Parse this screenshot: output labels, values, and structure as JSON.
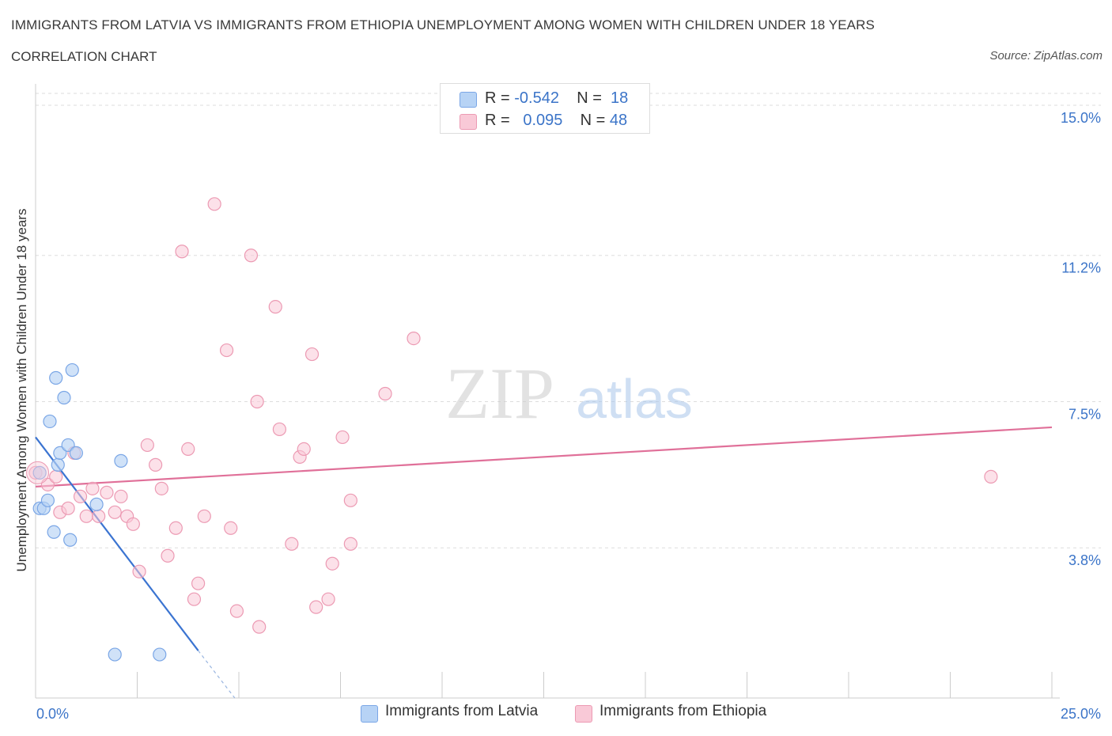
{
  "title": "IMMIGRANTS FROM LATVIA VS IMMIGRANTS FROM ETHIOPIA UNEMPLOYMENT AMONG WOMEN WITH CHILDREN UNDER 18 YEARS",
  "subtitle": "CORRELATION CHART",
  "source": "Source: ZipAtlas.com",
  "watermark": {
    "zip": "ZIP",
    "atlas": "atlas"
  },
  "legend_top": {
    "rows": [
      {
        "r_label": "R = ",
        "r_value": "-0.542",
        "n_label": "N = ",
        "n_value": "18"
      },
      {
        "r_label": "R = ",
        "r_value": "0.095",
        "n_label": "N = ",
        "n_value": "48"
      }
    ]
  },
  "legend_bottom": [
    "Immigrants from Latvia",
    "Immigrants from Ethiopia"
  ],
  "colors": {
    "latvia_fill": "#b7d3f5",
    "latvia_stroke": "#7aa6e6",
    "latvia_line": "#3b74d1",
    "ethiopia_fill": "#f9c9d7",
    "ethiopia_stroke": "#ec9ab3",
    "ethiopia_line": "#e07099",
    "tick_label": "#3b74c8",
    "grid": "#dddddd"
  },
  "chart_data": {
    "type": "scatter",
    "title": "IMMIGRANTS FROM LATVIA VS IMMIGRANTS FROM ETHIOPIA UNEMPLOYMENT AMONG WOMEN WITH CHILDREN UNDER 18 YEARS",
    "xlabel": "",
    "ylabel": "Unemployment Among Women with Children Under 18 years",
    "xlim": [
      0,
      25
    ],
    "ylim": [
      0,
      15.3
    ],
    "x_tick_labels": [
      "0.0%",
      "25.0%"
    ],
    "y_ticks": [
      3.8,
      7.5,
      11.2,
      15.0
    ],
    "y_tick_labels": [
      "3.8%",
      "7.5%",
      "11.2%",
      "15.0%"
    ],
    "grid": true,
    "legend_position": "top-center",
    "series": [
      {
        "name": "Immigrants from Latvia",
        "R": -0.542,
        "N": 18,
        "points": [
          [
            0.1,
            5.7
          ],
          [
            0.1,
            4.8
          ],
          [
            0.2,
            4.8
          ],
          [
            0.3,
            5.0
          ],
          [
            0.35,
            7.0
          ],
          [
            0.45,
            4.2
          ],
          [
            0.5,
            8.1
          ],
          [
            0.55,
            5.9
          ],
          [
            0.6,
            6.2
          ],
          [
            0.7,
            7.6
          ],
          [
            0.8,
            6.4
          ],
          [
            0.85,
            4.0
          ],
          [
            0.9,
            8.3
          ],
          [
            1.0,
            6.2
          ],
          [
            1.5,
            4.9
          ],
          [
            2.1,
            6.0
          ],
          [
            1.95,
            1.1
          ],
          [
            3.05,
            1.1
          ]
        ],
        "trend": {
          "x0": 0.0,
          "y0": 6.6,
          "x1": 4.0,
          "y1": 1.2,
          "dash_to_x": 4.9,
          "dash_to_y": 0.0
        }
      },
      {
        "name": "Immigrants from Ethiopia",
        "R": 0.095,
        "N": 48,
        "points": [
          [
            0.0,
            5.7
          ],
          [
            0.3,
            5.4
          ],
          [
            0.5,
            5.6
          ],
          [
            0.6,
            4.7
          ],
          [
            0.8,
            4.8
          ],
          [
            0.95,
            6.2
          ],
          [
            1.1,
            5.1
          ],
          [
            1.25,
            4.6
          ],
          [
            1.4,
            5.3
          ],
          [
            1.55,
            4.6
          ],
          [
            1.75,
            5.2
          ],
          [
            1.95,
            4.7
          ],
          [
            2.1,
            5.1
          ],
          [
            2.25,
            4.6
          ],
          [
            2.4,
            4.4
          ],
          [
            2.55,
            3.2
          ],
          [
            2.75,
            6.4
          ],
          [
            2.95,
            5.9
          ],
          [
            3.1,
            5.3
          ],
          [
            3.25,
            3.6
          ],
          [
            3.45,
            4.3
          ],
          [
            3.6,
            11.3
          ],
          [
            3.75,
            6.3
          ],
          [
            3.9,
            2.5
          ],
          [
            4.0,
            2.9
          ],
          [
            4.15,
            4.6
          ],
          [
            4.4,
            12.5
          ],
          [
            4.7,
            8.8
          ],
          [
            4.8,
            4.3
          ],
          [
            4.95,
            2.2
          ],
          [
            5.3,
            11.2
          ],
          [
            5.45,
            7.5
          ],
          [
            5.5,
            1.8
          ],
          [
            5.9,
            9.9
          ],
          [
            6.0,
            6.8
          ],
          [
            6.3,
            3.9
          ],
          [
            6.5,
            6.1
          ],
          [
            6.6,
            6.3
          ],
          [
            6.8,
            8.7
          ],
          [
            6.9,
            2.3
          ],
          [
            7.2,
            2.5
          ],
          [
            7.3,
            3.4
          ],
          [
            7.55,
            6.6
          ],
          [
            7.75,
            5.0
          ],
          [
            7.75,
            3.9
          ],
          [
            8.6,
            7.7
          ],
          [
            9.3,
            9.1
          ],
          [
            23.5,
            5.6
          ]
        ],
        "trend": {
          "x0": 0.0,
          "y0": 5.35,
          "x1": 25.0,
          "y1": 6.85
        }
      }
    ]
  }
}
